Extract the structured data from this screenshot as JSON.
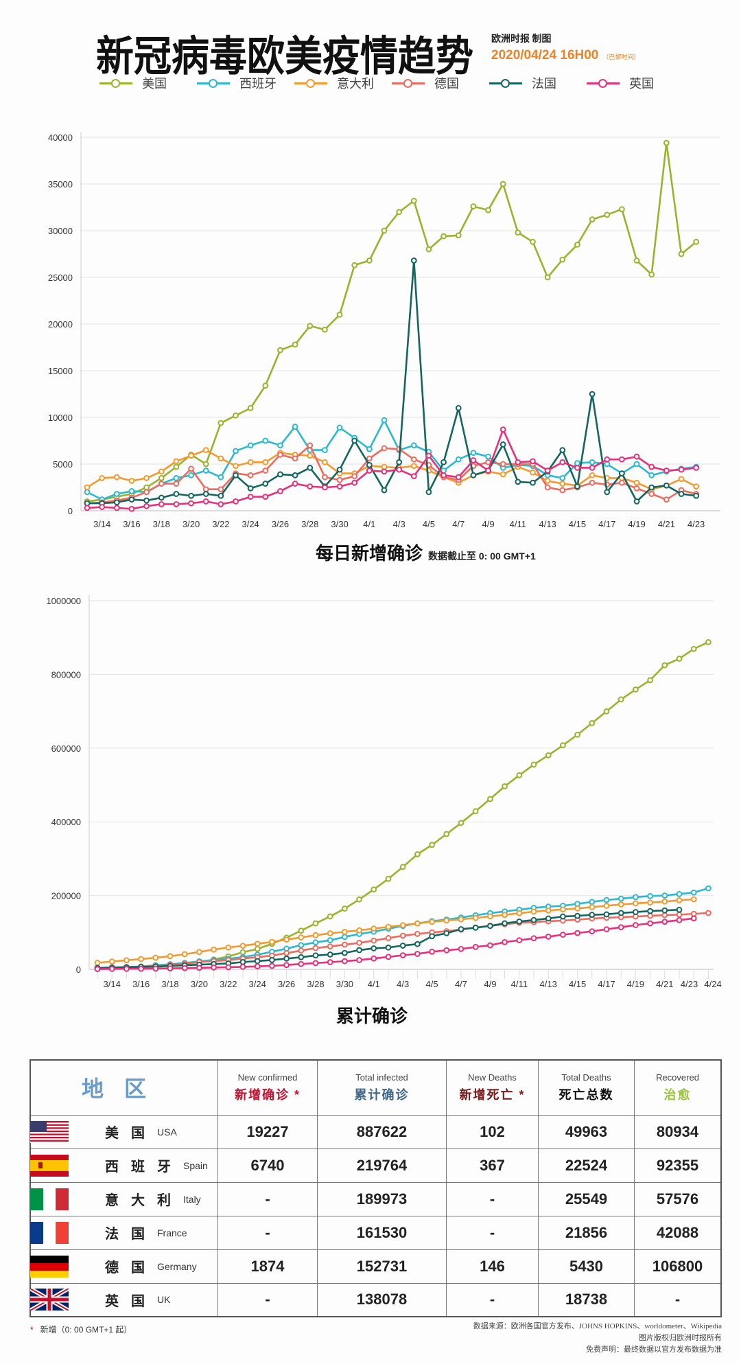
{
  "header": {
    "title": "新冠病毒欧美疫情趋势",
    "credit": "欧洲时报 制图",
    "date": "2020/04/24 16H00",
    "date_note": "（巴黎时间）"
  },
  "legend": [
    {
      "label": "美国",
      "color": "#9bb32c"
    },
    {
      "label": "西班牙",
      "color": "#2bb9d0"
    },
    {
      "label": "意大利",
      "color": "#f39a2f"
    },
    {
      "label": "德国",
      "color": "#ee6a5e"
    },
    {
      "label": "法国",
      "color": "#13655e"
    },
    {
      "label": "英国",
      "color": "#e7307a"
    }
  ],
  "chart_data": [
    {
      "type": "line",
      "title": "每日新增确诊",
      "subtitle": "数据截止至 0: 00 GMT+1",
      "ylim": [
        0,
        40000
      ],
      "y_ticks": [
        "0",
        "5000",
        "10000",
        "15000",
        "20000",
        "25000",
        "30000",
        "35000",
        "40000"
      ],
      "x_ticks": [
        "3/14",
        "3/16",
        "3/18",
        "3/20",
        "3/22",
        "3/24",
        "3/26",
        "3/28",
        "3/30",
        "4/1",
        "4/3",
        "4/5",
        "4/7",
        "4/9",
        "4/11",
        "4/13",
        "4/15",
        "4/17",
        "4/19",
        "4/21",
        "4/23"
      ],
      "x": [
        "3/13",
        "3/14",
        "3/15",
        "3/16",
        "3/17",
        "3/18",
        "3/19",
        "3/20",
        "3/21",
        "3/22",
        "3/23",
        "3/24",
        "3/25",
        "3/26",
        "3/27",
        "3/28",
        "3/29",
        "3/30",
        "3/31",
        "4/1",
        "4/2",
        "4/3",
        "4/4",
        "4/5",
        "4/6",
        "4/7",
        "4/8",
        "4/9",
        "4/10",
        "4/11",
        "4/12",
        "4/13",
        "4/14",
        "4/15",
        "4/16",
        "4/17",
        "4/18",
        "4/19",
        "4/20",
        "4/21",
        "4/22",
        "4/23"
      ],
      "grid": true,
      "series": [
        {
          "name": "美国",
          "values": [
            1000,
            1200,
            1500,
            1800,
            2500,
            3500,
            4700,
            6000,
            5000,
            9400,
            10200,
            11000,
            13400,
            17200,
            17800,
            19800,
            19400,
            21000,
            26300,
            26800,
            30000,
            32000,
            33200,
            28000,
            29400,
            29500,
            32600,
            32200,
            35000,
            29800,
            28800,
            25000,
            26900,
            28500,
            31200,
            31700,
            32300,
            26800,
            25300,
            39400,
            27500,
            28800
          ]
        },
        {
          "name": "西班牙",
          "values": [
            2000,
            1200,
            1800,
            2100,
            2000,
            2900,
            3500,
            3800,
            4300,
            3600,
            6400,
            7000,
            7500,
            7000,
            9000,
            6500,
            6500,
            8900,
            7800,
            6600,
            9700,
            6500,
            7000,
            6300,
            4300,
            5500,
            6200,
            5800,
            4600,
            4900,
            4800,
            3800,
            3500,
            5100,
            5200,
            5000,
            4000,
            5000,
            3800,
            4200,
            4500,
            4700
          ]
        },
        {
          "name": "意大利",
          "values": [
            2500,
            3500,
            3600,
            3200,
            3500,
            4200,
            5300,
            5900,
            6500,
            5600,
            4800,
            5200,
            5200,
            6200,
            6000,
            5900,
            5200,
            4000,
            4000,
            4800,
            4700,
            4600,
            4800,
            4300,
            3600,
            3000,
            3800,
            4200,
            3900,
            4700,
            4100,
            3200,
            2900,
            2700,
            3800,
            3500,
            3500,
            3000,
            2300,
            2700,
            3400,
            2600
          ]
        },
        {
          "name": "德国",
          "values": [
            800,
            900,
            1100,
            1400,
            2000,
            2900,
            2900,
            4500,
            2300,
            2300,
            4000,
            3800,
            4300,
            6000,
            5600,
            7000,
            3600,
            3300,
            3700,
            5600,
            6700,
            6600,
            5500,
            4900,
            3600,
            3300,
            4800,
            5200,
            5000,
            5000,
            5000,
            2500,
            2200,
            2500,
            3000,
            2800,
            3000,
            2400,
            1800,
            1200,
            2200,
            1800
          ]
        },
        {
          "name": "法国",
          "values": [
            800,
            800,
            900,
            1200,
            1100,
            1400,
            1800,
            1600,
            1800,
            1600,
            3800,
            2400,
            2900,
            3900,
            3800,
            4600,
            2600,
            4400,
            7500,
            4900,
            2200,
            5200,
            26800,
            2000,
            5200,
            11000,
            3800,
            4300,
            7100,
            3100,
            3000,
            4200,
            6500,
            2600,
            12500,
            2000,
            4000,
            1000,
            2500,
            2700,
            1800,
            1600
          ]
        },
        {
          "name": "英国",
          "values": [
            300,
            400,
            300,
            200,
            500,
            700,
            700,
            800,
            1000,
            700,
            1000,
            1500,
            1500,
            2100,
            2900,
            2600,
            2500,
            2600,
            3000,
            4300,
            4200,
            4400,
            3700,
            5900,
            3800,
            3600,
            5400,
            4300,
            8700,
            5200,
            5300,
            4300,
            5200,
            4600,
            4600,
            5500,
            5500,
            5800,
            4700,
            4300,
            4400,
            4600
          ]
        }
      ]
    },
    {
      "type": "line",
      "title": "累计确诊",
      "ylim": [
        0,
        1000000
      ],
      "y_ticks": [
        "0",
        "200000",
        "400000",
        "600000",
        "800000",
        "1000000"
      ],
      "x_ticks": [
        "3/14",
        "3/16",
        "3/18",
        "3/20",
        "3/22",
        "3/24",
        "3/26",
        "3/28",
        "3/30",
        "4/1",
        "4/3",
        "4/5",
        "4/7",
        "4/9",
        "4/11",
        "4/13",
        "4/15",
        "4/17",
        "4/19",
        "4/21",
        "4/23",
        "4/24"
      ],
      "x": [
        "3/13",
        "3/14",
        "3/15",
        "3/16",
        "3/17",
        "3/18",
        "3/19",
        "3/20",
        "3/21",
        "3/22",
        "3/23",
        "3/24",
        "3/25",
        "3/26",
        "3/27",
        "3/28",
        "3/29",
        "3/30",
        "3/31",
        "4/1",
        "4/2",
        "4/3",
        "4/4",
        "4/5",
        "4/6",
        "4/7",
        "4/8",
        "4/9",
        "4/10",
        "4/11",
        "4/12",
        "4/13",
        "4/14",
        "4/15",
        "4/16",
        "4/17",
        "4/18",
        "4/19",
        "4/20",
        "4/21",
        "4/22",
        "4/23",
        "4/24"
      ],
      "grid": true,
      "series": [
        {
          "name": "美国",
          "values": [
            2200,
            2700,
            3500,
            4600,
            6400,
            9400,
            14000,
            19600,
            26700,
            35200,
            46400,
            55200,
            69200,
            85900,
            104800,
            124700,
            143500,
            164700,
            189600,
            216700,
            245500,
            277800,
            312200,
            337600,
            367000,
            397000,
            429000,
            462000,
            496500,
            526400,
            555300,
            580600,
            607700,
            636400,
            667800,
            699700,
            732200,
            759000,
            784300,
            825000,
            842600,
            869200,
            887622
          ]
        },
        {
          "name": "西班牙",
          "values": [
            4200,
            5200,
            6400,
            7800,
            11200,
            13900,
            17400,
            21600,
            25400,
            28600,
            33100,
            39700,
            47600,
            56200,
            65700,
            73200,
            78800,
            87900,
            95900,
            102100,
            110200,
            117700,
            124700,
            130800,
            135000,
            140500,
            146700,
            152400,
            157000,
            161900,
            166800,
            170100,
            172500,
            177600,
            182800,
            188100,
            191700,
            195900,
            198700,
            200200,
            204200,
            208400,
            219764
          ]
        },
        {
          "name": "意大利",
          "values": [
            17700,
            21200,
            24700,
            27900,
            31500,
            35700,
            41000,
            47000,
            53600,
            59100,
            63900,
            69200,
            74400,
            80600,
            86500,
            92500,
            97700,
            101700,
            105800,
            110600,
            115200,
            119800,
            124600,
            128900,
            132500,
            135600,
            139400,
            143600,
            147600,
            152300,
            156400,
            159500,
            162500,
            165200,
            168900,
            172400,
            175900,
            178900,
            181200,
            183900,
            187300,
            189973,
            null
          ]
        },
        {
          "name": "德国",
          "values": [
            3700,
            4600,
            5800,
            7300,
            9300,
            12300,
            15300,
            19800,
            22200,
            24900,
            29100,
            32900,
            37300,
            43900,
            50900,
            57700,
            62100,
            66900,
            71800,
            77900,
            84800,
            91200,
            96100,
            100100,
            103400,
            107700,
            113300,
            118200,
            122200,
            126300,
            127900,
            130400,
            132200,
            134800,
            137700,
            139900,
            141400,
            143300,
            145200,
            147000,
            148300,
            150600,
            152731
          ]
        },
        {
          "name": "法国",
          "values": [
            3700,
            4500,
            5400,
            6600,
            7700,
            9100,
            10900,
            12600,
            14400,
            16000,
            19800,
            22300,
            25200,
            29100,
            32900,
            37600,
            40200,
            44500,
            52100,
            56900,
            59100,
            64300,
            68600,
            89900,
            98000,
            109000,
            112900,
            117700,
            124900,
            129700,
            133700,
            137900,
            143300,
            145000,
            147900,
            149100,
            152900,
            155400,
            158100,
            159800,
            161530,
            null,
            null
          ]
        },
        {
          "name": "英国",
          "values": [
            800,
            1100,
            1400,
            1500,
            2000,
            2600,
            3300,
            4000,
            5000,
            5700,
            6700,
            8100,
            9500,
            11700,
            14500,
            17000,
            19500,
            22100,
            25100,
            29400,
            33700,
            38200,
            41900,
            47800,
            51600,
            55200,
            60700,
            65100,
            73800,
            78900,
            84300,
            88600,
            93900,
            98500,
            103100,
            108600,
            114200,
            120100,
            124700,
            129000,
            133500,
            138078,
            null
          ]
        }
      ]
    }
  ],
  "table": {
    "region_header": "地区",
    "columns": [
      {
        "en": "New confirmed",
        "zh": "新增确诊 *",
        "color": "#c8102e"
      },
      {
        "en": "Total infected",
        "zh": "累计确诊",
        "color": "#3f6787"
      },
      {
        "en": "New Deaths",
        "zh": "新增死亡 *",
        "color": "#7a1a1a"
      },
      {
        "en": "Total Deaths",
        "zh": "死亡总数",
        "color": "#111111"
      },
      {
        "en": "Recovered",
        "zh": "治愈",
        "color": "#9bc53d"
      }
    ],
    "rows": [
      {
        "flag": "usa",
        "cn": "美国",
        "en": "USA",
        "cells": [
          "19227",
          "887622",
          "102",
          "49963",
          "80934"
        ]
      },
      {
        "flag": "spain",
        "cn": "西班牙",
        "en": "Spain",
        "cells": [
          "6740",
          "219764",
          "367",
          "22524",
          "92355"
        ]
      },
      {
        "flag": "italy",
        "cn": "意大利",
        "en": "Italy",
        "cells": [
          "-",
          "189973",
          "-",
          "25549",
          "57576"
        ]
      },
      {
        "flag": "france",
        "cn": "法国",
        "en": "France",
        "cells": [
          "-",
          "161530",
          "-",
          "21856",
          "42088"
        ]
      },
      {
        "flag": "germany",
        "cn": "德国",
        "en": "Germany",
        "cells": [
          "1874",
          "152731",
          "146",
          "5430",
          "106800"
        ]
      },
      {
        "flag": "uk",
        "cn": "英国",
        "en": "UK",
        "cells": [
          "-",
          "138078",
          "-",
          "18738",
          "-"
        ]
      }
    ]
  },
  "footer": {
    "star": "*",
    "note": "新增（0: 00 GMT+1 起）",
    "source": "数据来源：欧洲各国官方发布、JOHNS HOPKINS、worldometer、Wikipedia",
    "copyright": "图片版权归欧洲时报所有",
    "disclaimer": "免费声明：最终数据以官方发布数据为准"
  }
}
